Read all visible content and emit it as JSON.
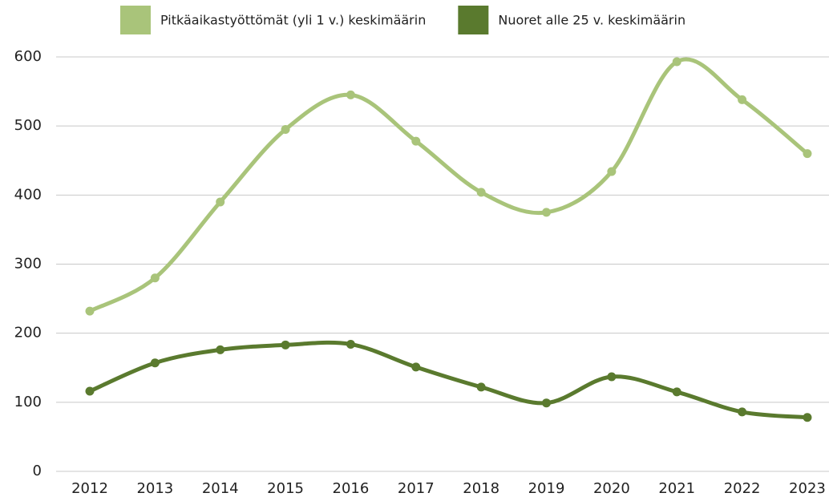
{
  "chart_data": {
    "type": "line",
    "categories": [
      "2012",
      "2013",
      "2014",
      "2015",
      "2016",
      "2017",
      "2018",
      "2019",
      "2020",
      "2021",
      "2022",
      "2023"
    ],
    "series": [
      {
        "name": "Pitkäaikastyöttömät (yli 1 v.) keskimäärin",
        "color": "#a9c47a",
        "values": [
          232,
          280,
          390,
          495,
          545,
          478,
          404,
          375,
          434,
          593,
          538,
          460
        ]
      },
      {
        "name": "Nuoret alle 25 v. keskimäärin",
        "color": "#5a7a2e",
        "values": [
          116,
          157,
          176,
          183,
          184,
          151,
          122,
          99,
          137,
          115,
          86,
          78
        ]
      }
    ],
    "ylim": [
      0,
      600
    ],
    "yticks": [
      0,
      100,
      200,
      300,
      400,
      500,
      600
    ],
    "grid": true,
    "legend": "top",
    "smooth": true
  }
}
